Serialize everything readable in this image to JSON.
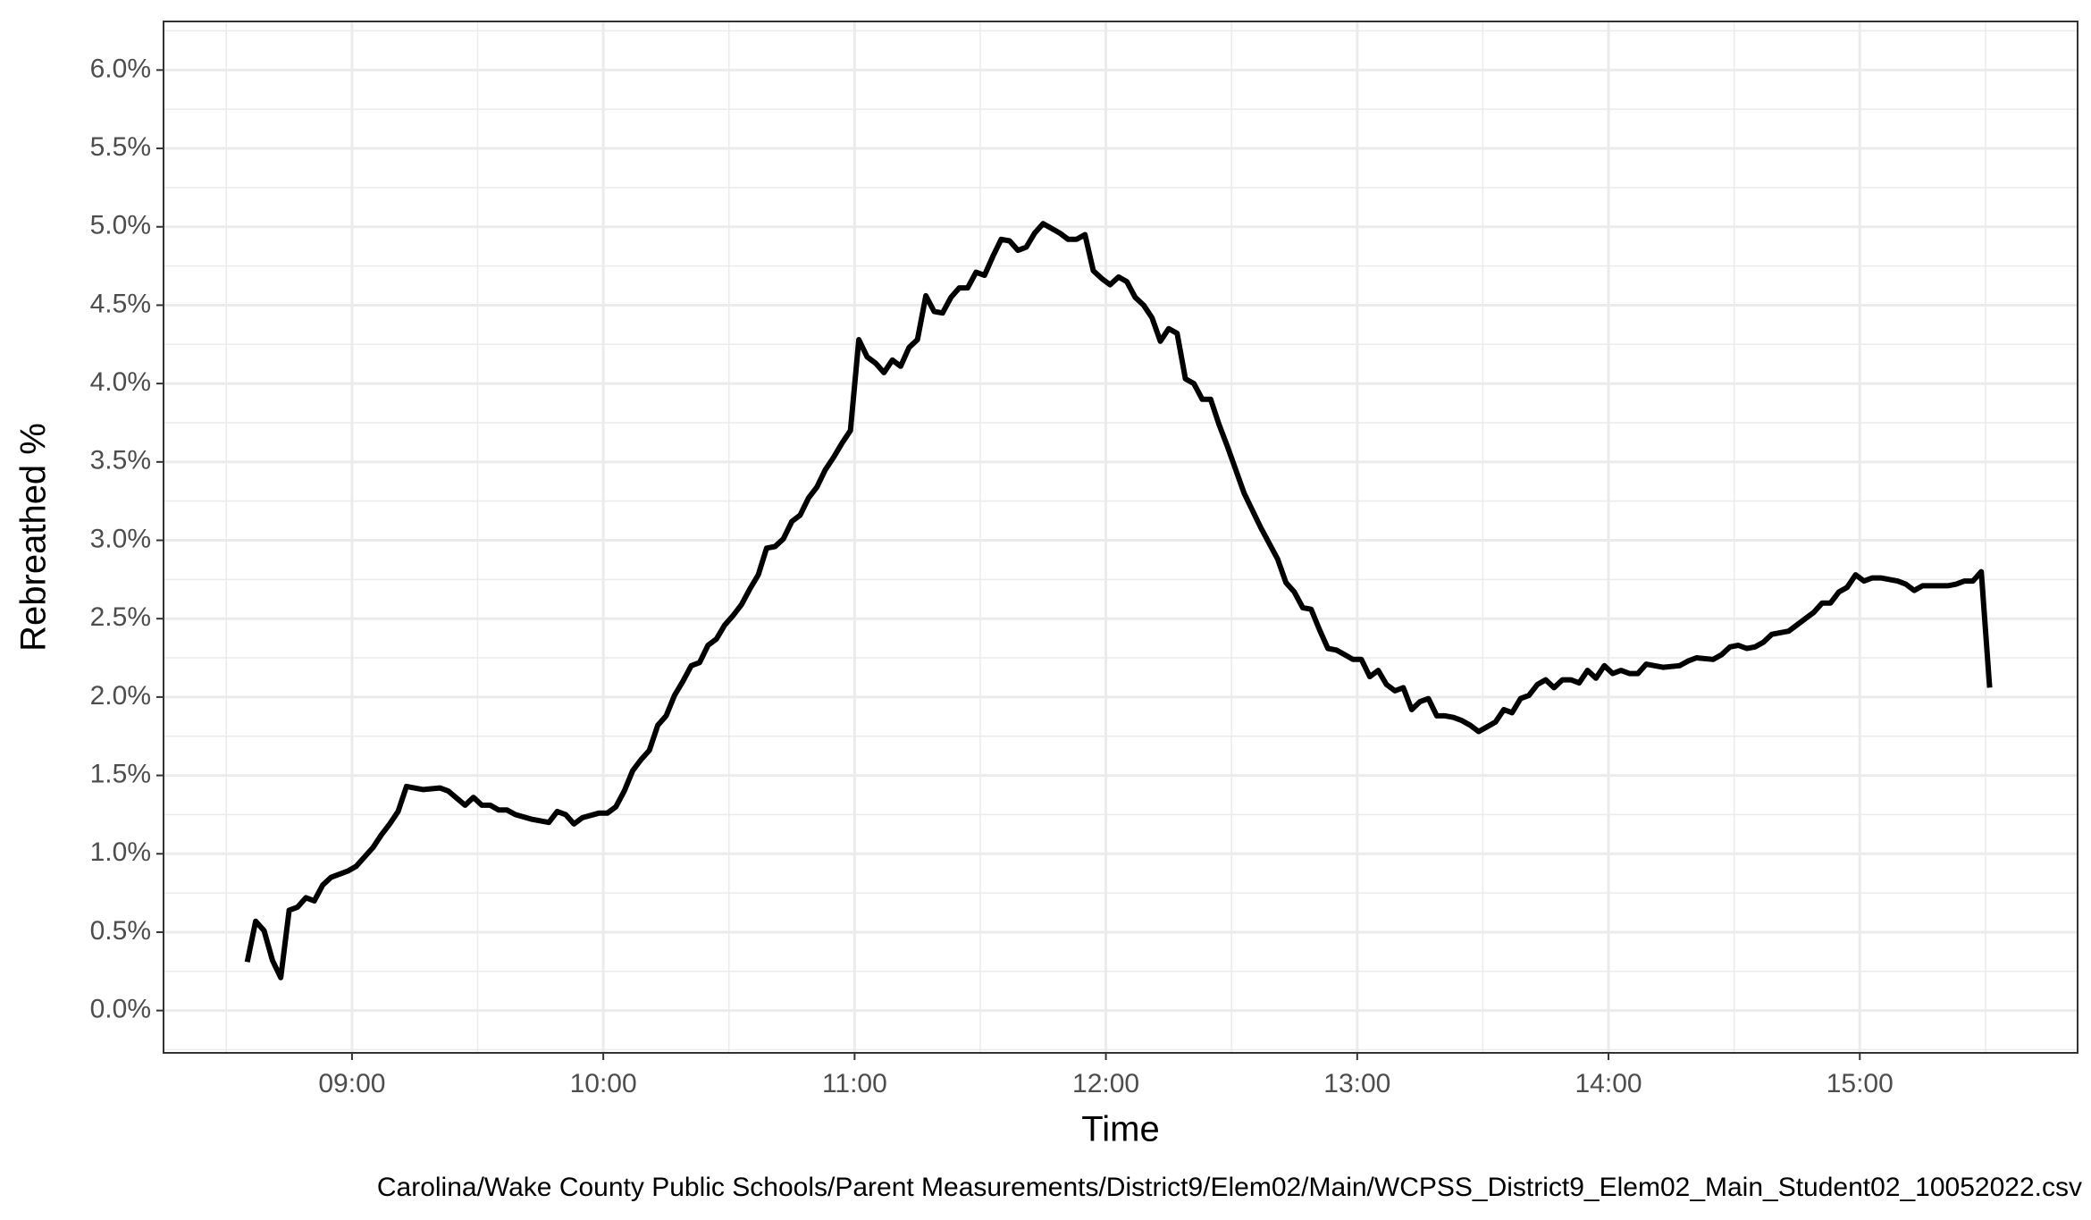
{
  "chart_data": {
    "type": "line",
    "x_label": "Time",
    "y_label": "Rebreathed %",
    "caption": "Carolina/Wake County Public Schools/Parent Measurements/District9/Elem02/Main/WCPSS_District9_Elem02_Main_Student02_10052022.csv",
    "xlim": [
      "08:15",
      "15:52"
    ],
    "xticks": [
      "09:00",
      "10:00",
      "11:00",
      "12:00",
      "13:00",
      "14:00",
      "15:00"
    ],
    "ylim": [
      -0.27,
      6.31
    ],
    "yticks": [
      {
        "value": 0,
        "label": "0.0%"
      },
      {
        "value": 0.5,
        "label": "0.5%"
      },
      {
        "value": 1,
        "label": "1.0%"
      },
      {
        "value": 1.5,
        "label": "1.5%"
      },
      {
        "value": 2,
        "label": "2.0%"
      },
      {
        "value": 2.5,
        "label": "2.5%"
      },
      {
        "value": 3,
        "label": "3.0%"
      },
      {
        "value": 3.5,
        "label": "3.5%"
      },
      {
        "value": 4,
        "label": "4.0%"
      },
      {
        "value": 4.5,
        "label": "4.5%"
      },
      {
        "value": 5,
        "label": "5.0%"
      },
      {
        "value": 5.5,
        "label": "5.5%"
      },
      {
        "value": 6,
        "label": "6.0%"
      }
    ],
    "grid": true,
    "x": [
      "08:35",
      "08:37",
      "08:39",
      "08:41",
      "08:43",
      "08:45",
      "08:47",
      "08:49",
      "08:51",
      "08:53",
      "08:55",
      "08:57",
      "08:59",
      "09:01",
      "09:03",
      "09:05",
      "09:07",
      "09:09",
      "09:11",
      "09:13",
      "09:17",
      "09:21",
      "09:23",
      "09:27",
      "09:29",
      "09:31",
      "09:33",
      "09:35",
      "09:37",
      "09:39",
      "09:43",
      "09:47",
      "09:49",
      "09:51",
      "09:53",
      "09:55",
      "09:59",
      "10:01",
      "10:03",
      "10:05",
      "10:07",
      "10:09",
      "10:11",
      "10:13",
      "10:15",
      "10:17",
      "10:19",
      "10:21",
      "10:23",
      "10:25",
      "10:27",
      "10:29",
      "10:31",
      "10:33",
      "10:35",
      "10:37",
      "10:39",
      "10:41",
      "10:43",
      "10:45",
      "10:47",
      "10:49",
      "10:51",
      "10:53",
      "10:55",
      "10:57",
      "10:59",
      "11:01",
      "11:03",
      "11:05",
      "11:07",
      "11:09",
      "11:11",
      "11:13",
      "11:15",
      "11:17",
      "11:19",
      "11:21",
      "11:23",
      "11:25",
      "11:27",
      "11:29",
      "11:31",
      "11:33",
      "11:35",
      "11:37",
      "11:39",
      "11:41",
      "11:43",
      "11:45",
      "11:47",
      "11:49",
      "11:51",
      "11:53",
      "11:55",
      "11:57",
      "11:59",
      "12:01",
      "12:03",
      "12:05",
      "12:07",
      "12:09",
      "12:11",
      "12:13",
      "12:15",
      "12:17",
      "12:19",
      "12:21",
      "12:23",
      "12:25",
      "12:27",
      "12:29",
      "12:33",
      "12:37",
      "12:41",
      "12:43",
      "12:45",
      "12:47",
      "12:49",
      "12:51",
      "12:53",
      "12:55",
      "12:57",
      "12:59",
      "13:01",
      "13:03",
      "13:05",
      "13:07",
      "13:09",
      "13:11",
      "13:13",
      "13:15",
      "13:17",
      "13:19",
      "13:21",
      "13:23",
      "13:25",
      "13:27",
      "13:29",
      "13:31",
      "13:33",
      "13:35",
      "13:37",
      "13:39",
      "13:41",
      "13:43",
      "13:45",
      "13:47",
      "13:49",
      "13:51",
      "13:53",
      "13:55",
      "13:57",
      "13:59",
      "14:01",
      "14:03",
      "14:05",
      "14:07",
      "14:09",
      "14:13",
      "14:17",
      "14:19",
      "14:21",
      "14:25",
      "14:27",
      "14:29",
      "14:31",
      "14:33",
      "14:35",
      "14:37",
      "14:39",
      "14:43",
      "14:45",
      "14:47",
      "14:49",
      "14:51",
      "14:53",
      "14:55",
      "14:57",
      "14:59",
      "15:01",
      "15:03",
      "15:05",
      "15:09",
      "15:11",
      "15:13",
      "15:15",
      "15:17",
      "15:21",
      "15:23",
      "15:25",
      "15:27",
      "15:29",
      "15:31"
    ],
    "series": [
      {
        "color": "#000000",
        "values": [
          0.31,
          0.57,
          0.51,
          0.32,
          0.21,
          0.64,
          0.66,
          0.72,
          0.7,
          0.8,
          0.85,
          0.87,
          0.89,
          0.92,
          0.98,
          1.04,
          1.12,
          1.19,
          1.27,
          1.43,
          1.41,
          1.42,
          1.4,
          1.31,
          1.36,
          1.31,
          1.31,
          1.28,
          1.28,
          1.25,
          1.22,
          1.2,
          1.27,
          1.25,
          1.19,
          1.23,
          1.26,
          1.26,
          1.3,
          1.4,
          1.53,
          1.6,
          1.66,
          1.82,
          1.88,
          2.01,
          2.1,
          2.2,
          2.22,
          2.33,
          2.37,
          2.46,
          2.52,
          2.59,
          2.69,
          2.78,
          2.95,
          2.96,
          3.01,
          3.12,
          3.16,
          3.27,
          3.34,
          3.45,
          3.53,
          3.62,
          3.7,
          4.28,
          4.17,
          4.13,
          4.07,
          4.15,
          4.11,
          4.23,
          4.28,
          4.56,
          4.46,
          4.45,
          4.55,
          4.61,
          4.61,
          4.71,
          4.69,
          4.81,
          4.92,
          4.91,
          4.85,
          4.87,
          4.96,
          5.02,
          4.99,
          4.96,
          4.92,
          4.92,
          4.95,
          4.72,
          4.67,
          4.63,
          4.68,
          4.65,
          4.55,
          4.5,
          4.42,
          4.27,
          4.35,
          4.32,
          4.03,
          4.0,
          3.9,
          3.9,
          3.74,
          3.6,
          3.3,
          3.08,
          2.88,
          2.73,
          2.67,
          2.57,
          2.56,
          2.43,
          2.31,
          2.3,
          2.27,
          2.24,
          2.24,
          2.13,
          2.17,
          2.08,
          2.04,
          2.06,
          1.92,
          1.97,
          1.99,
          1.88,
          1.88,
          1.87,
          1.85,
          1.82,
          1.78,
          1.81,
          1.84,
          1.92,
          1.9,
          1.99,
          2.01,
          2.08,
          2.11,
          2.06,
          2.11,
          2.11,
          2.09,
          2.17,
          2.12,
          2.2,
          2.15,
          2.17,
          2.15,
          2.15,
          2.21,
          2.19,
          2.2,
          2.23,
          2.25,
          2.24,
          2.27,
          2.32,
          2.33,
          2.31,
          2.32,
          2.35,
          2.4,
          2.42,
          2.46,
          2.5,
          2.54,
          2.6,
          2.6,
          2.67,
          2.7,
          2.78,
          2.74,
          2.76,
          2.76,
          2.74,
          2.72,
          2.68,
          2.71,
          2.71,
          2.71,
          2.72,
          2.74,
          2.74,
          2.8,
          2.06
        ]
      }
    ]
  }
}
